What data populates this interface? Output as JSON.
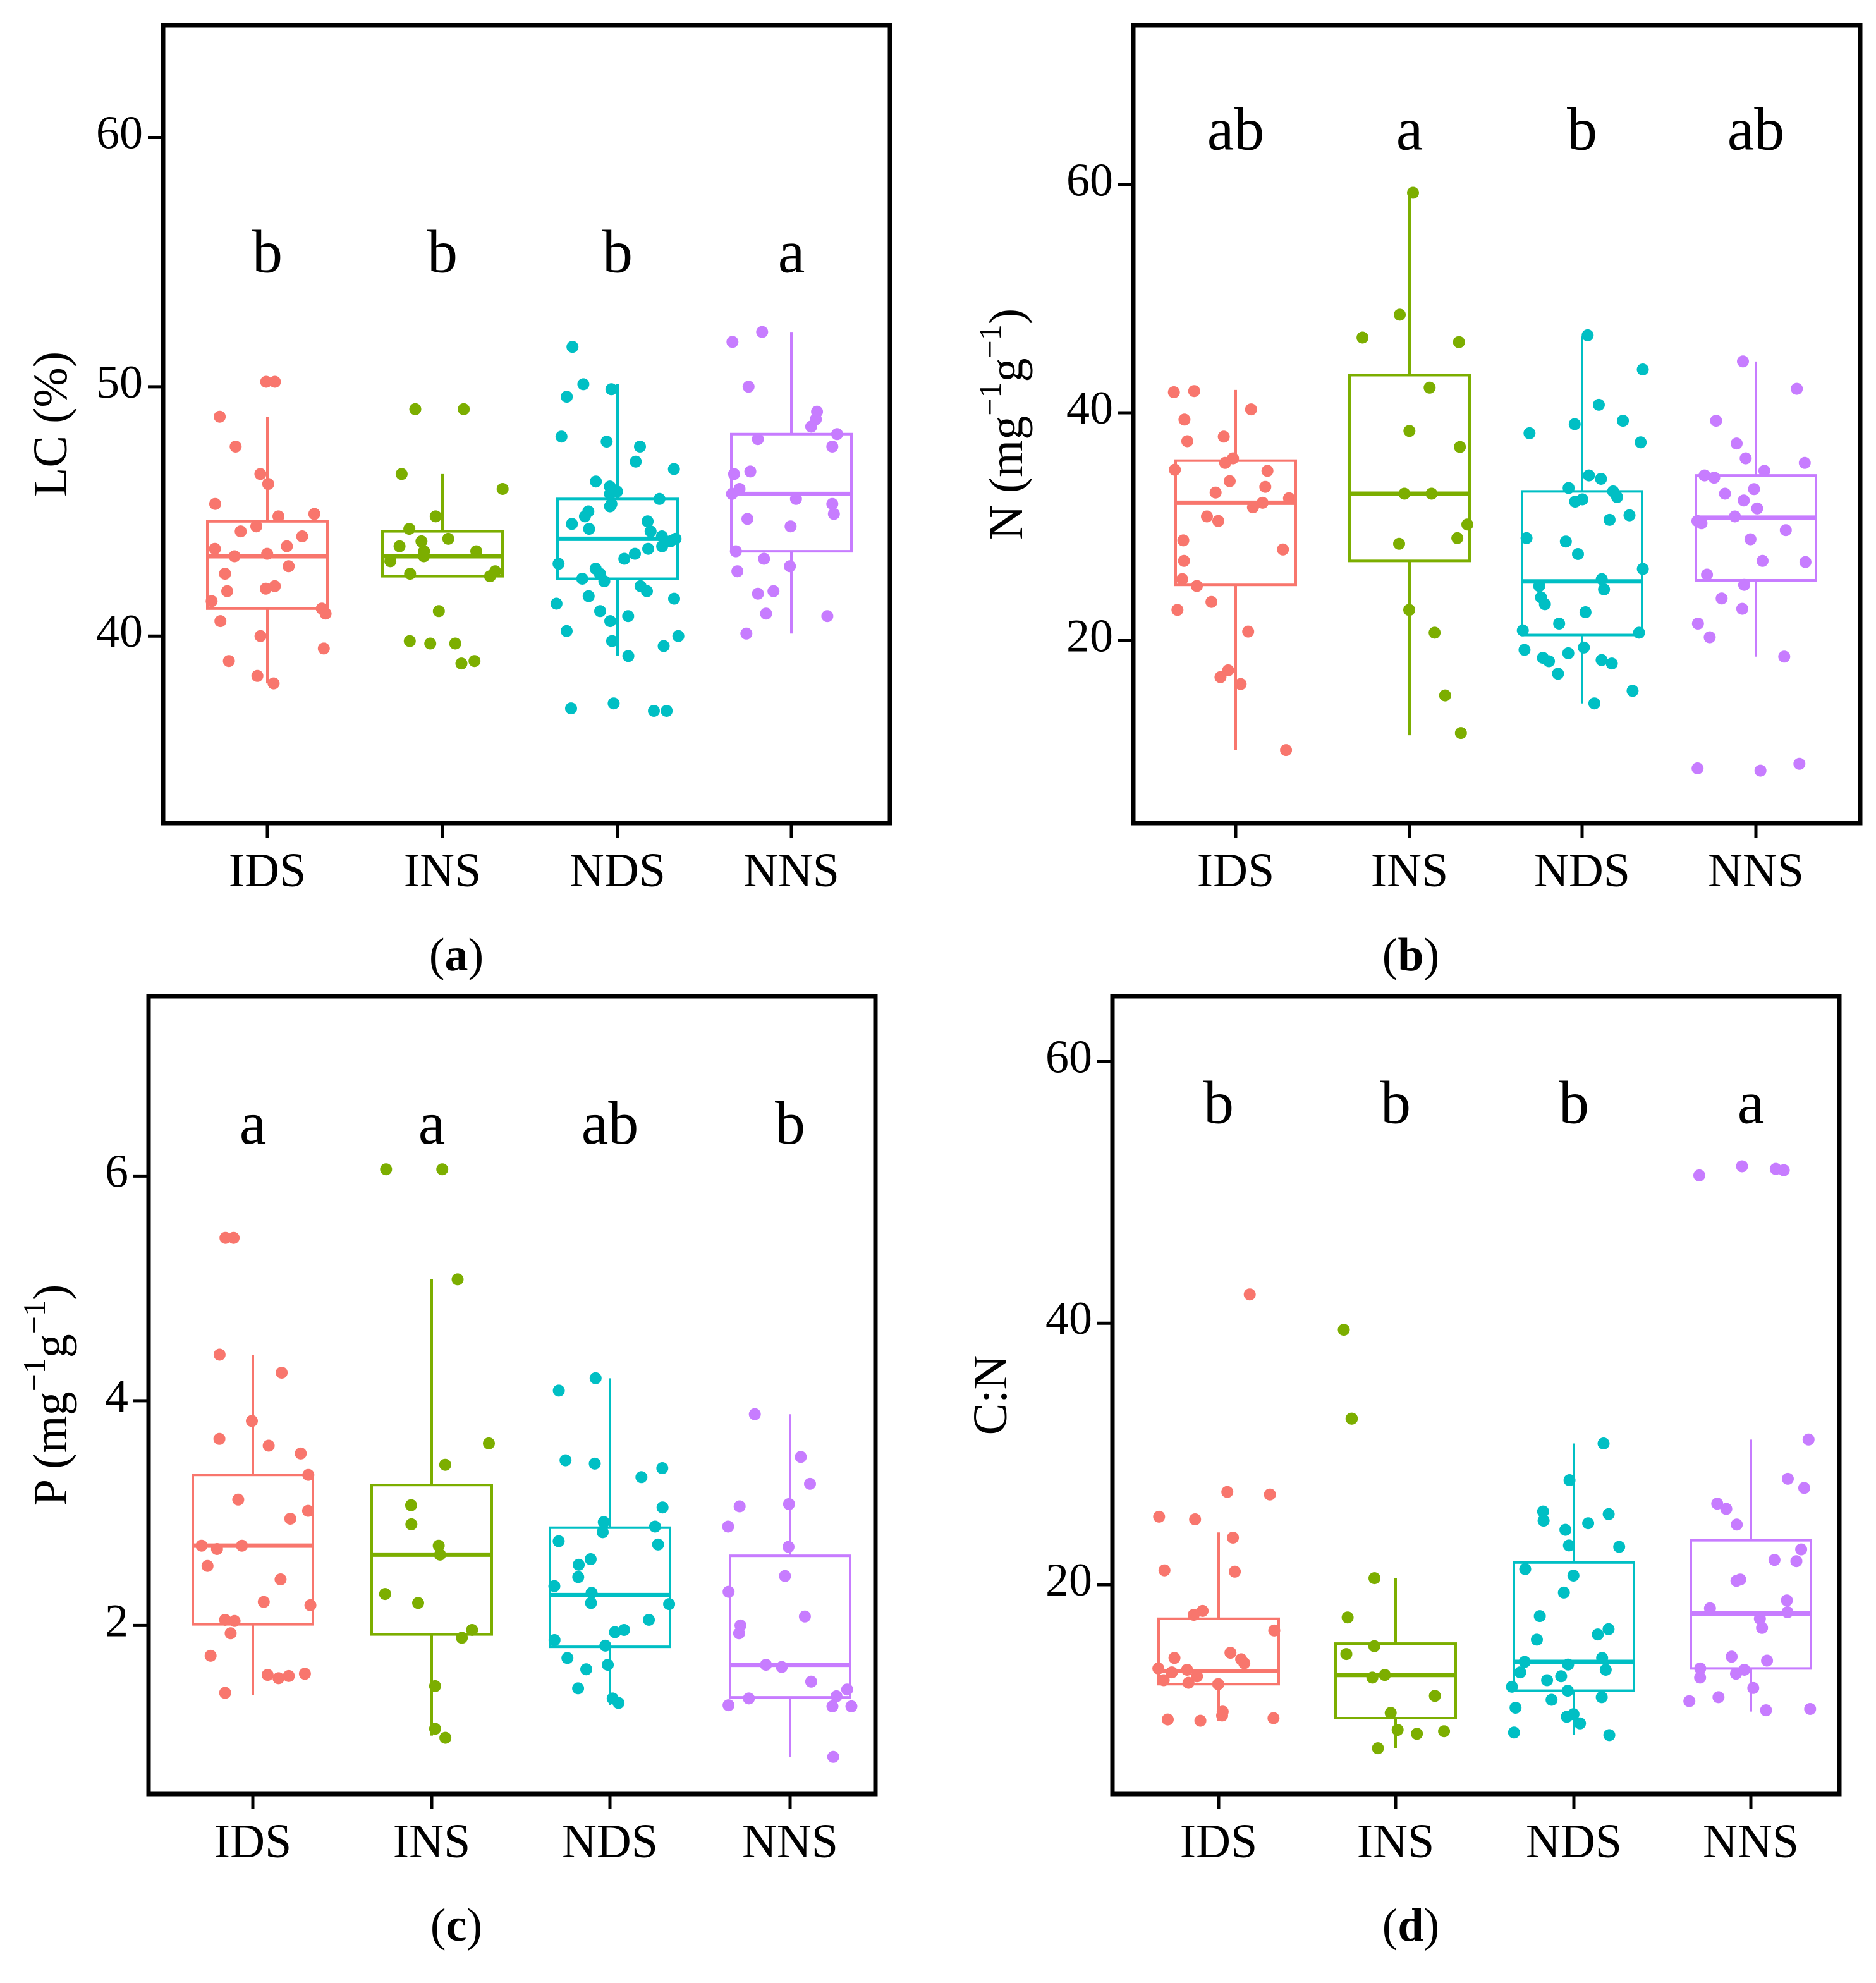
{
  "colors": {
    "IDS": "#F8766D",
    "INS": "#7CAE00",
    "NDS": "#00BFC4",
    "NNS": "#C77CFF"
  },
  "chart_data": [
    {
      "type": "box",
      "panel": "a",
      "caption": {
        "open": "(",
        "letter": "a",
        "close": ")"
      },
      "ylabel": "LC (%)",
      "ylabel_parts": {
        "base": "LC (%)"
      },
      "ylim": [
        32.5,
        64.5
      ],
      "yticks": [
        40,
        50,
        60
      ],
      "categories": [
        "IDS",
        "INS",
        "NDS",
        "NNS"
      ],
      "letters": [
        {
          "text": "b",
          "y": 54.6
        },
        {
          "text": "b",
          "y": 54.6
        },
        {
          "text": "b",
          "y": 54.6
        },
        {
          "text": "a",
          "y": 54.6
        }
      ],
      "boxes": [
        {
          "min": 38.1,
          "q1": 41.1,
          "median": 43.2,
          "q3": 44.6,
          "max": 48.8
        },
        {
          "min": 42.4,
          "q1": 42.4,
          "median": 43.2,
          "q3": 44.2,
          "max": 46.5
        },
        {
          "min": 39.2,
          "q1": 42.3,
          "median": 43.9,
          "q3": 45.5,
          "max": 50.1
        },
        {
          "min": 40.1,
          "q1": 43.4,
          "median": 45.7,
          "q3": 48.1,
          "max": 52.2
        }
      ],
      "points": [
        [
          50.2,
          50.2,
          48.8,
          47.6,
          46.5,
          46.1,
          45.3,
          44.9,
          44.8,
          44.4,
          44.2,
          44.0,
          43.6,
          43.5,
          43.3,
          43.2,
          42.8,
          42.5,
          42.0,
          41.9,
          41.8,
          41.4,
          41.1,
          40.9,
          40.6,
          40.0,
          39.5,
          39.0,
          38.4,
          38.1
        ],
        [
          49.1,
          49.1,
          46.5,
          45.9,
          44.8,
          44.3,
          43.9,
          43.8,
          43.6,
          43.4,
          43.4,
          43.2,
          43.0,
          42.6,
          42.5,
          42.4,
          41.0,
          39.8,
          39.7,
          39.7,
          39.0,
          38.9
        ],
        [
          51.6,
          50.1,
          49.9,
          49.6,
          48.0,
          47.8,
          47.6,
          47.0,
          46.7,
          46.2,
          46.0,
          45.8,
          45.7,
          45.5,
          45.3,
          45.2,
          45.0,
          44.8,
          44.6,
          44.5,
          44.3,
          44.2,
          44.0,
          43.9,
          43.8,
          43.6,
          43.5,
          43.3,
          43.1,
          42.9,
          42.7,
          42.5,
          42.3,
          42.2,
          42.0,
          41.8,
          41.6,
          41.5,
          41.3,
          41.0,
          40.8,
          40.6,
          40.2,
          40.0,
          39.8,
          39.6,
          39.2,
          37.3,
          37.1,
          37.0,
          37.0
        ],
        [
          52.2,
          51.8,
          50.0,
          49.0,
          48.7,
          48.4,
          48.1,
          47.9,
          47.6,
          46.6,
          46.5,
          45.9,
          45.7,
          45.5,
          45.3,
          44.9,
          44.7,
          44.4,
          43.4,
          43.1,
          42.8,
          42.6,
          41.8,
          41.7,
          40.9,
          40.8,
          40.1
        ]
      ]
    },
    {
      "type": "box",
      "panel": "b",
      "caption": {
        "open": "(",
        "letter": "b",
        "close": ")"
      },
      "ylabel": "N (mg−1g−1)",
      "ylabel_parts": {
        "base1": "N (mg",
        "sup1": "−1",
        "base2": "g",
        "sup2": "−1",
        "base3": ")"
      },
      "ylim": [
        4,
        74
      ],
      "yticks": [
        20,
        40,
        60
      ],
      "categories": [
        "IDS",
        "INS",
        "NDS",
        "NNS"
      ],
      "letters": [
        {
          "text": "ab",
          "y": 63.1
        },
        {
          "text": "a",
          "y": 63.1
        },
        {
          "text": "b",
          "y": 63.1
        },
        {
          "text": "ab",
          "y": 63.1
        }
      ],
      "boxes": [
        {
          "min": 10.4,
          "q1": 24.9,
          "median": 32.1,
          "q3": 35.8,
          "max": 42.0
        },
        {
          "min": 11.7,
          "q1": 27.0,
          "median": 32.9,
          "q3": 43.3,
          "max": 59.1
        },
        {
          "min": 14.5,
          "q1": 20.5,
          "median": 25.2,
          "q3": 33.1,
          "max": 46.7
        },
        {
          "min": 18.6,
          "q1": 25.3,
          "median": 30.8,
          "q3": 34.5,
          "max": 44.5
        }
      ],
      "points": [
        [
          41.9,
          41.8,
          40.3,
          39.4,
          37.9,
          37.5,
          36.0,
          35.6,
          35.0,
          34.9,
          34.0,
          33.5,
          33.0,
          32.5,
          32.1,
          31.7,
          30.9,
          30.5,
          28.8,
          28.0,
          27.0,
          25.4,
          24.8,
          23.4,
          22.7,
          20.8,
          17.4,
          16.8,
          16.2,
          10.4
        ],
        [
          59.3,
          48.6,
          46.6,
          46.2,
          42.2,
          38.4,
          37.0,
          32.9,
          32.9,
          30.2,
          29.0,
          28.5,
          22.7,
          20.7,
          15.2,
          11.9
        ],
        [
          46.8,
          43.8,
          40.7,
          39.3,
          39.0,
          38.2,
          37.4,
          34.5,
          34.2,
          33.4,
          33.1,
          32.6,
          32.4,
          32.2,
          31.0,
          30.6,
          29.0,
          28.7,
          27.6,
          26.3,
          25.4,
          24.8,
          24.5,
          23.8,
          23.2,
          22.5,
          21.5,
          20.9,
          20.7,
          19.4,
          19.2,
          18.9,
          18.5,
          18.3,
          18.2,
          18.0,
          17.1,
          15.6,
          14.5
        ],
        [
          44.5,
          42.1,
          39.3,
          37.3,
          36.0,
          35.6,
          34.9,
          34.5,
          34.3,
          33.3,
          32.9,
          32.3,
          31.6,
          30.9,
          30.5,
          30.3,
          29.7,
          28.9,
          27.0,
          26.9,
          25.8,
          24.9,
          23.7,
          22.8,
          21.5,
          20.3,
          18.6,
          9.2,
          8.8,
          8.6
        ]
      ]
    },
    {
      "type": "box",
      "panel": "c",
      "caption": {
        "open": "(",
        "letter": "c",
        "close": ")"
      },
      "ylabel": "P (mg−1g−1)",
      "ylabel_parts": {
        "base1": "P (mg",
        "sup1": "−1",
        "base2": "g",
        "sup2": "−1",
        "base3": ")"
      },
      "ylim": [
        0.5,
        7.6
      ],
      "yticks": [
        2,
        4,
        6
      ],
      "categories": [
        "IDS",
        "INS",
        "NDS",
        "NNS"
      ],
      "letters": [
        {
          "text": "a",
          "y": 6.29
        },
        {
          "text": "a",
          "y": 6.29
        },
        {
          "text": "ab",
          "y": 6.29
        },
        {
          "text": "b",
          "y": 6.29
        }
      ],
      "boxes": [
        {
          "min": 1.38,
          "q1": 2.01,
          "median": 2.71,
          "q3": 3.34,
          "max": 4.41
        },
        {
          "min": 1.02,
          "q1": 1.92,
          "median": 2.63,
          "q3": 3.25,
          "max": 5.08
        },
        {
          "min": 1.29,
          "q1": 1.81,
          "median": 2.27,
          "q3": 2.87,
          "max": 4.2
        },
        {
          "min": 0.83,
          "q1": 1.36,
          "median": 1.65,
          "q3": 2.62,
          "max": 3.88
        }
      ],
      "points": [
        [
          5.45,
          5.45,
          4.41,
          4.25,
          3.82,
          3.66,
          3.6,
          3.53,
          3.34,
          3.12,
          3.02,
          2.95,
          2.71,
          2.71,
          2.68,
          2.53,
          2.41,
          2.21,
          2.18,
          2.05,
          2.04,
          1.93,
          1.73,
          1.57,
          1.56,
          1.55,
          1.53,
          1.4
        ],
        [
          6.06,
          6.06,
          5.08,
          3.62,
          3.43,
          3.07,
          2.9,
          2.71,
          2.63,
          2.28,
          2.2,
          1.96,
          1.89,
          1.46,
          1.08,
          1.0
        ],
        [
          4.2,
          4.09,
          3.47,
          3.44,
          3.4,
          3.32,
          3.05,
          2.92,
          2.88,
          2.83,
          2.75,
          2.72,
          2.59,
          2.54,
          2.43,
          2.35,
          2.29,
          2.2,
          2.19,
          2.05,
          1.96,
          1.94,
          1.87,
          1.82,
          1.71,
          1.65,
          1.61,
          1.44,
          1.35,
          1.31
        ],
        [
          3.88,
          3.5,
          3.26,
          3.08,
          3.06,
          2.88,
          2.7,
          2.44,
          2.3,
          2.08,
          2.0,
          1.93,
          1.65,
          1.63,
          1.5,
          1.43,
          1.37,
          1.35,
          1.29,
          1.28,
          1.28,
          0.83
        ]
      ]
    },
    {
      "type": "box",
      "panel": "d",
      "caption": {
        "open": "(",
        "letter": "d",
        "close": ")"
      },
      "ylabel": "C:N",
      "ylabel_parts": {
        "base": "C:N"
      },
      "ylim": [
        4,
        65
      ],
      "yticks": [
        20,
        40,
        60
      ],
      "categories": [
        "IDS",
        "INS",
        "NDS",
        "NNS"
      ],
      "letters": [
        {
          "text": "b",
          "y": 55.3
        },
        {
          "text": "b",
          "y": 55.3
        },
        {
          "text": "b",
          "y": 55.3
        },
        {
          "text": "a",
          "y": 55.3
        }
      ],
      "boxes": [
        {
          "min": 9.6,
          "q1": 12.4,
          "median": 13.4,
          "q3": 17.4,
          "max": 24.0
        },
        {
          "min": 7.5,
          "q1": 9.8,
          "median": 13.1,
          "q3": 15.5,
          "max": 20.5
        },
        {
          "min": 8.5,
          "q1": 11.9,
          "median": 14.1,
          "q3": 21.7,
          "max": 30.8
        },
        {
          "min": 10.3,
          "q1": 13.6,
          "median": 17.8,
          "q3": 23.4,
          "max": 31.1
        }
      ],
      "points": [
        [
          42.2,
          27.1,
          26.9,
          25.2,
          25.0,
          23.6,
          21.1,
          21.0,
          18.0,
          17.7,
          16.5,
          14.8,
          14.4,
          14.3,
          14.0,
          13.6,
          13.5,
          13.3,
          13.0,
          12.7,
          12.5,
          12.4,
          10.3,
          10.0,
          9.8,
          9.7,
          9.6
        ],
        [
          39.5,
          32.7,
          32.7,
          20.5,
          17.5,
          15.3,
          14.7,
          13.1,
          12.9,
          11.5,
          10.2,
          8.9,
          8.8,
          8.6,
          7.5
        ],
        [
          30.8,
          28.0,
          25.6,
          25.4,
          24.9,
          24.7,
          24.2,
          23.0,
          22.9,
          21.2,
          20.7,
          19.4,
          17.6,
          16.6,
          16.2,
          15.8,
          14.4,
          14.1,
          13.9,
          13.5,
          13.3,
          13.0,
          12.7,
          12.2,
          11.9,
          11.4,
          11.2,
          10.6,
          10.1,
          9.9,
          9.4,
          8.7,
          8.5
        ],
        [
          52.0,
          51.8,
          51.7,
          51.3,
          31.1,
          28.1,
          27.4,
          26.2,
          25.8,
          24.6,
          22.7,
          21.9,
          21.8,
          20.4,
          20.3,
          18.8,
          18.2,
          17.9,
          17.4,
          16.7,
          14.5,
          14.2,
          13.6,
          13.5,
          13.2,
          12.9,
          12.1,
          11.4,
          11.1,
          10.5,
          10.4
        ]
      ]
    }
  ]
}
